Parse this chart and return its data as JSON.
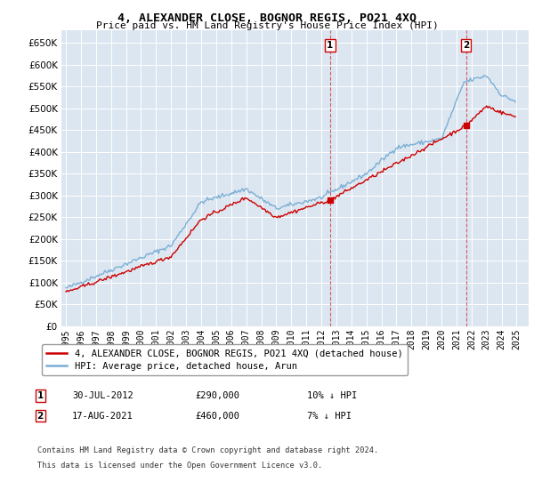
{
  "title": "4, ALEXANDER CLOSE, BOGNOR REGIS, PO21 4XQ",
  "subtitle": "Price paid vs. HM Land Registry's House Price Index (HPI)",
  "legend_label_red": "4, ALEXANDER CLOSE, BOGNOR REGIS, PO21 4XQ (detached house)",
  "legend_label_blue": "HPI: Average price, detached house, Arun",
  "annotation1_date": "30-JUL-2012",
  "annotation1_price": "£290,000",
  "annotation1_hpi": "10% ↓ HPI",
  "annotation2_date": "17-AUG-2021",
  "annotation2_price": "£460,000",
  "annotation2_hpi": "7% ↓ HPI",
  "footnote1": "Contains HM Land Registry data © Crown copyright and database right 2024.",
  "footnote2": "This data is licensed under the Open Government Licence v3.0.",
  "ylim_min": 0,
  "ylim_max": 680000,
  "yticks": [
    0,
    50000,
    100000,
    150000,
    200000,
    250000,
    300000,
    350000,
    400000,
    450000,
    500000,
    550000,
    600000,
    650000
  ],
  "background_color": "#dce6f1",
  "red_color": "#cc0000",
  "blue_color": "#7bafd4",
  "sale1_x": 2012.583,
  "sale1_y": 290000,
  "sale2_x": 2021.625,
  "sale2_y": 460000,
  "xlim_left": 1994.7,
  "xlim_right": 2025.8
}
